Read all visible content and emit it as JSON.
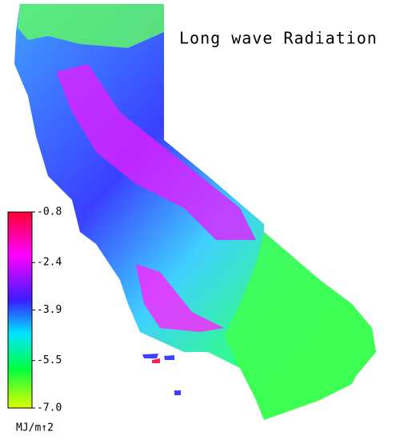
{
  "title": "Long wave Radiation",
  "colorbar": {
    "range": [
      -7,
      -0.8
    ],
    "ticks": [
      -0.8,
      -2.4,
      -3.9,
      -5.5,
      {
        "value": -7,
        "label": "-7.0"
      }
    ],
    "unit": "MJ/m↑2"
  }
}
